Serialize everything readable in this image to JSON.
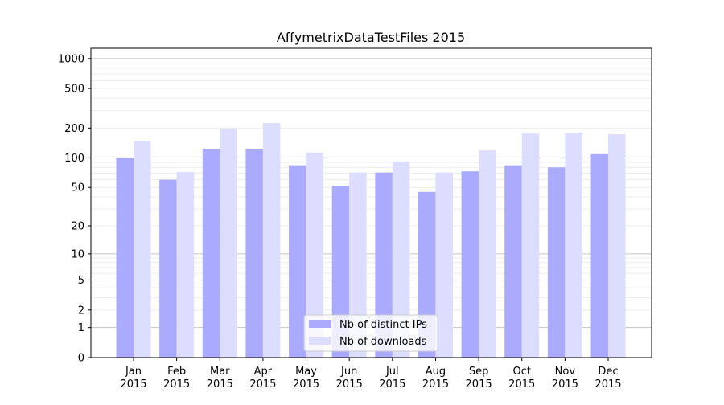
{
  "chart_data": {
    "type": "bar",
    "title": "AffymetrixDataTestFiles 2015",
    "xlabel": "",
    "ylabel": "",
    "yscale": "symlog (log10(1+y))",
    "ylim": [
      0,
      1270
    ],
    "yticks": [
      0,
      1,
      2,
      5,
      10,
      20,
      50,
      100,
      200,
      500,
      1000
    ],
    "grid": true,
    "legend_position": "bottom-center",
    "categories": [
      "Jan\n2015",
      "Feb\n2015",
      "Mar\n2015",
      "Apr\n2015",
      "May\n2015",
      "Jun\n2015",
      "Jul\n2015",
      "Aug\n2015",
      "Sep\n2015",
      "Oct\n2015",
      "Nov\n2015",
      "Dec\n2015"
    ],
    "series": [
      {
        "name": "Nb of distinct IPs",
        "color": "#aaaaff",
        "values": [
          100,
          60,
          124,
          124,
          84,
          52,
          71,
          45,
          73,
          84,
          80,
          109
        ]
      },
      {
        "name": "Nb of downloads",
        "color": "#ddddff",
        "values": [
          149,
          72,
          198,
          225,
          113,
          71,
          92,
          71,
          119,
          176,
          180,
          173
        ]
      }
    ]
  }
}
